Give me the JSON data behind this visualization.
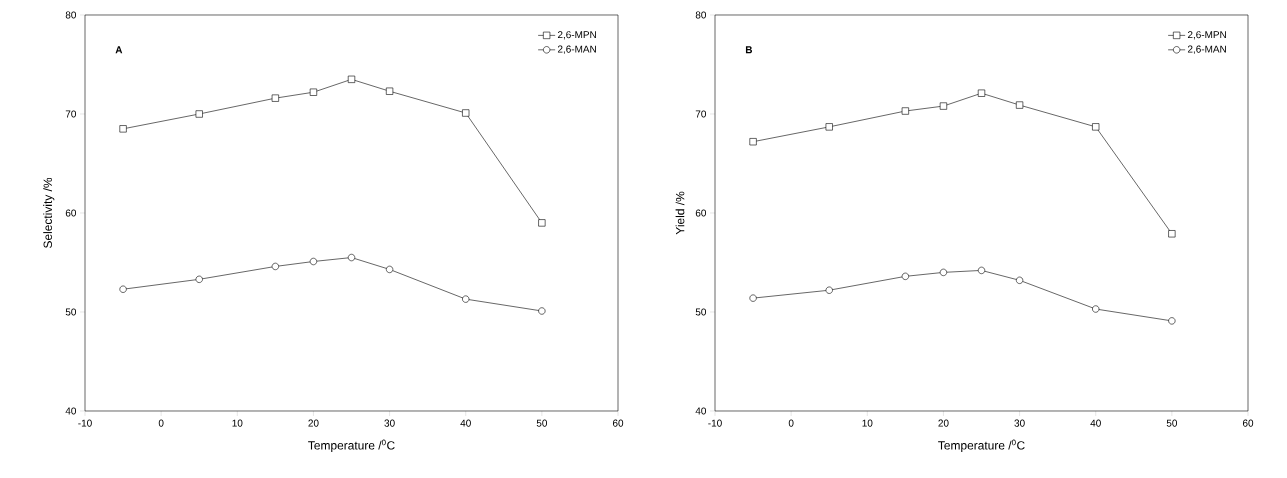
{
  "chart_data": [
    {
      "type": "line",
      "title": "A",
      "xlabel": "Temperature /$^{0}$C",
      "ylabel": "Selectivity /%",
      "x": [
        -5,
        5,
        15,
        20,
        25,
        30,
        40,
        50
      ],
      "series": [
        {
          "name": "2,6-MPN",
          "color": "#000000",
          "marker": "square",
          "values": [
            68.5,
            70.0,
            71.6,
            72.2,
            73.5,
            72.3,
            70.1,
            59.0
          ]
        },
        {
          "name": "2,6-MAN",
          "color": "#000000",
          "marker": "circle",
          "values": [
            52.3,
            53.3,
            54.6,
            55.1,
            55.5,
            54.3,
            51.3,
            50.1
          ]
        }
      ],
      "xlim": [
        -10,
        60
      ],
      "xticks": [
        -10,
        0,
        10,
        20,
        30,
        40,
        50,
        60
      ],
      "ylim": [
        40,
        80
      ],
      "yticks": [
        40,
        50,
        60,
        70,
        80
      ],
      "legend": "top right",
      "grid": false
    },
    {
      "type": "line",
      "title": "B",
      "xlabel": "Temperature /$^{0}$C",
      "ylabel": "Yield /%",
      "x": [
        -5,
        5,
        15,
        20,
        25,
        30,
        40,
        50
      ],
      "series": [
        {
          "name": "2,6-MPN",
          "color": "#000000",
          "marker": "square",
          "values": [
            67.2,
            68.7,
            70.3,
            70.8,
            72.1,
            70.9,
            68.7,
            57.9
          ]
        },
        {
          "name": "2,6-MAN",
          "color": "#000000",
          "marker": "circle",
          "values": [
            51.4,
            52.2,
            53.6,
            54.0,
            54.2,
            53.2,
            50.3,
            49.1
          ]
        }
      ],
      "xlim": [
        -10,
        60
      ],
      "xticks": [
        -10,
        0,
        10,
        20,
        30,
        40,
        50,
        60
      ],
      "ylim": [
        40,
        80
      ],
      "yticks": [
        40,
        50,
        60,
        70,
        80
      ],
      "legend": "top right",
      "grid": false
    }
  ]
}
